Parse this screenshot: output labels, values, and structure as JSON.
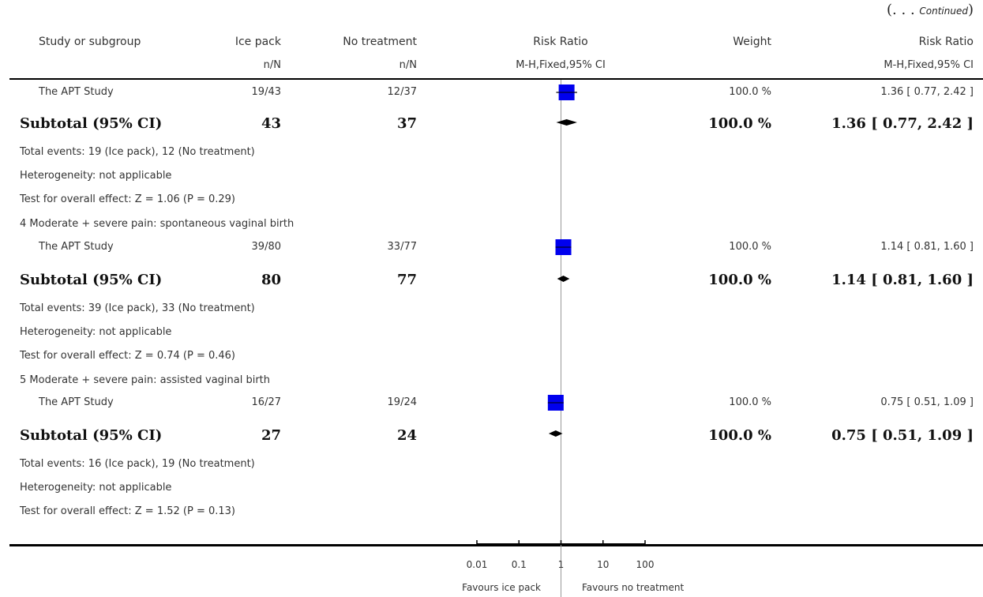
{
  "continued": {
    "open": "(. . . ",
    "text": "Continued",
    "close": ")"
  },
  "header": {
    "study": "Study or subgroup",
    "exp": "Ice pack",
    "ctrl": "No treatment",
    "rr": "Risk Ratio",
    "weight": "Weight",
    "rr_right": "Risk Ratio",
    "exp_sub": "n/N",
    "ctrl_sub": "n/N",
    "rr_sub": "M-H,Fixed,95% CI",
    "rr_right_sub": "M-H,Fixed,95% CI"
  },
  "rows": [
    {
      "kind": "study",
      "label": "The APT Study",
      "exp": "19/43",
      "ctrl": "12/37",
      "weight": "100.0 %",
      "ci": "1.36 [ 0.77, 2.42 ]"
    },
    {
      "kind": "subtotal",
      "label": "Subtotal (95% CI)",
      "exp": "43",
      "ctrl": "37",
      "weight": "100.0 %",
      "ci": "1.36 [ 0.77, 2.42 ]"
    },
    {
      "kind": "note",
      "label": "Total events: 19 (Ice pack), 12 (No treatment)"
    },
    {
      "kind": "note",
      "label": "Heterogeneity: not applicable"
    },
    {
      "kind": "note",
      "label": "Test for overall effect: Z = 1.06 (P = 0.29)"
    },
    {
      "kind": "group",
      "label": "4 Moderate + severe pain: spontaneous vaginal birth"
    },
    {
      "kind": "study",
      "label": "The APT Study",
      "exp": "39/80",
      "ctrl": "33/77",
      "weight": "100.0 %",
      "ci": "1.14 [ 0.81, 1.60 ]"
    },
    {
      "kind": "subtotal",
      "label": "Subtotal (95% CI)",
      "exp": "80",
      "ctrl": "77",
      "weight": "100.0 %",
      "ci": "1.14 [ 0.81, 1.60 ]"
    },
    {
      "kind": "note",
      "label": "Total events: 39 (Ice pack), 33 (No treatment)"
    },
    {
      "kind": "note",
      "label": "Heterogeneity: not applicable"
    },
    {
      "kind": "note",
      "label": "Test for overall effect: Z = 0.74 (P = 0.46)"
    },
    {
      "kind": "group",
      "label": "5 Moderate + severe pain: assisted vaginal birth"
    },
    {
      "kind": "study",
      "label": "The APT Study",
      "exp": "16/27",
      "ctrl": "19/24",
      "weight": "100.0 %",
      "ci": "0.75 [ 0.51, 1.09 ]"
    },
    {
      "kind": "subtotal",
      "label": "Subtotal (95% CI)",
      "exp": "27",
      "ctrl": "24",
      "weight": "100.0 %",
      "ci": "0.75 [ 0.51, 1.09 ]"
    },
    {
      "kind": "note",
      "label": "Total events: 16 (Ice pack), 19 (No treatment)"
    },
    {
      "kind": "note",
      "label": "Heterogeneity: not applicable"
    },
    {
      "kind": "note",
      "label": "Test for overall effect: Z = 1.52 (P = 0.13)"
    }
  ],
  "axis": {
    "ticks": [
      "0.01",
      "0.1",
      "1",
      "10",
      "100"
    ],
    "favours_left": "Favours ice pack",
    "favours_right": "Favours no treatment"
  },
  "colors": {
    "square": "#0000ee",
    "diamond": "#000000",
    "line": "#999999"
  },
  "chart_data": {
    "type": "forest",
    "xscale": "log",
    "xlim": [
      0.01,
      100
    ],
    "reference_line": 1,
    "studies": [
      {
        "label": "The APT Study",
        "rr": 1.36,
        "lo": 0.77,
        "hi": 2.42,
        "weight": 100.0
      },
      {
        "label": "The APT Study",
        "rr": 1.14,
        "lo": 0.81,
        "hi": 1.6,
        "weight": 100.0
      },
      {
        "label": "The APT Study",
        "rr": 0.75,
        "lo": 0.51,
        "hi": 1.09,
        "weight": 100.0
      }
    ],
    "subtotals": [
      {
        "label": "Subtotal (95% CI)",
        "rr": 1.36,
        "lo": 0.77,
        "hi": 2.42
      },
      {
        "label": "Subtotal (95% CI)",
        "rr": 1.14,
        "lo": 0.81,
        "hi": 1.6
      },
      {
        "label": "Subtotal (95% CI)",
        "rr": 0.75,
        "lo": 0.51,
        "hi": 1.09
      }
    ]
  }
}
